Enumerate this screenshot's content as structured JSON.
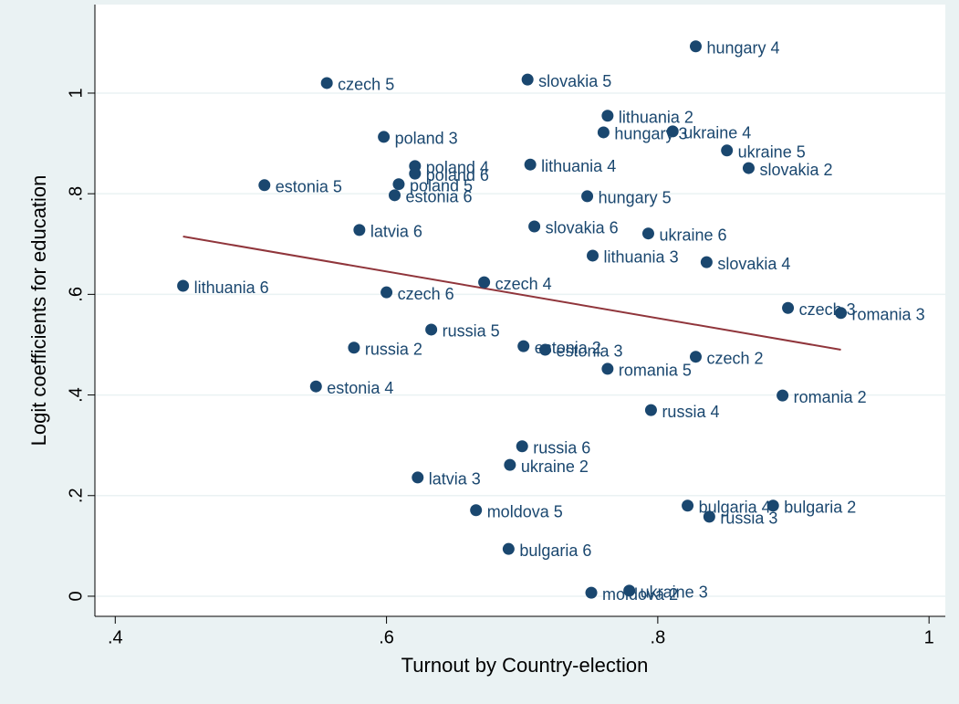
{
  "chart_data": {
    "type": "scatter",
    "x_label": "Turnout by Country-election",
    "y_label": "Logit coefficients for education",
    "xlim": [
      0.385,
      1.012
    ],
    "ylim": [
      -0.04,
      1.176
    ],
    "xticks": [
      {
        "value": 0.4,
        "label": ".4"
      },
      {
        "value": 0.6,
        "label": ".6"
      },
      {
        "value": 0.8,
        "label": ".8"
      },
      1
    ],
    "yticks": [
      0,
      {
        "value": 0.2,
        "label": ".2"
      },
      {
        "value": 0.4,
        "label": ".4"
      },
      {
        "value": 0.6,
        "label": ".6"
      },
      {
        "value": 0.8,
        "label": ".8"
      },
      1
    ],
    "grid": true,
    "color": "#1a476f",
    "point_labels": [
      "hungary 4",
      "czech 5",
      "slovakia 5",
      "lithuania 2",
      "poland 3",
      "hungary 3",
      "ukraine 4",
      "ukraine 5",
      "slovakia 2",
      "poland 4",
      "poland 6",
      "lithuania 4",
      "estonia 5",
      "poland 5",
      "estonia 6",
      "hungary 5",
      "latvia 6",
      "slovakia 6",
      "ukraine 6",
      "lithuania 3",
      "slovakia 4",
      "lithuania 6",
      "czech 4",
      "czech 6",
      "czech 3",
      "romania 3",
      "russia 5",
      "russia 2",
      "estonia 2",
      "estonia 3",
      "romania 5",
      "czech 2",
      "estonia 4",
      "romania 2",
      "russia 4",
      "russia 6",
      "ukraine 2",
      "latvia 3",
      "moldova 5",
      "bulgaria 4",
      "bulgaria 2",
      "russia 3",
      "bulgaria 6",
      "moldova 2",
      "ukraine 3"
    ],
    "x": [
      0.828,
      0.556,
      0.704,
      0.763,
      0.598,
      0.76,
      0.811,
      0.851,
      0.867,
      0.621,
      0.621,
      0.706,
      0.51,
      0.609,
      0.606,
      0.748,
      0.58,
      0.709,
      0.793,
      0.752,
      0.836,
      0.45,
      0.672,
      0.6,
      0.896,
      0.935,
      0.633,
      0.576,
      0.701,
      0.717,
      0.763,
      0.828,
      0.548,
      0.892,
      0.795,
      0.7,
      0.691,
      0.623,
      0.666,
      0.822,
      0.885,
      0.838,
      0.69,
      0.751,
      0.779
    ],
    "y": [
      1.093,
      1.02,
      1.027,
      0.955,
      0.913,
      0.922,
      0.924,
      0.886,
      0.851,
      0.855,
      0.84,
      0.858,
      0.817,
      0.819,
      0.797,
      0.795,
      0.728,
      0.735,
      0.721,
      0.677,
      0.664,
      0.617,
      0.624,
      0.604,
      0.573,
      0.563,
      0.53,
      0.494,
      0.497,
      0.49,
      0.452,
      0.476,
      0.417,
      0.399,
      0.37,
      0.298,
      0.261,
      0.236,
      0.171,
      0.18,
      0.18,
      0.158,
      0.094,
      0.007,
      0.011
    ],
    "fit_line": {
      "color": "#90353b",
      "x": [
        0.45,
        0.935
      ],
      "y": [
        0.715,
        0.49
      ]
    }
  }
}
